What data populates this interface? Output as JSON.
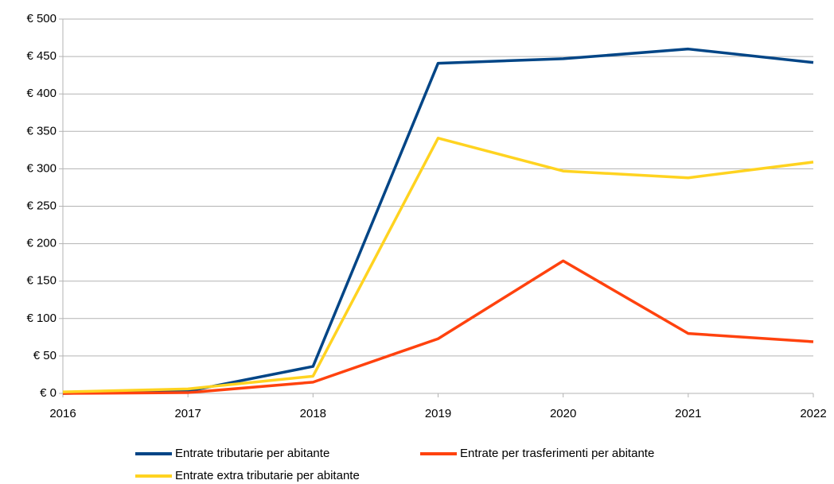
{
  "chart_data": {
    "type": "line",
    "x": [
      2016,
      2017,
      2018,
      2019,
      2020,
      2021,
      2022
    ],
    "series": [
      {
        "name": "Entrate tributarie per abitante",
        "color": "#004586",
        "values": [
          0,
          3,
          36,
          441,
          447,
          460,
          442
        ]
      },
      {
        "name": "Entrate per trasferimenti per abitante",
        "color": "#ff420e",
        "values": [
          0,
          1,
          15,
          73,
          177,
          80,
          69
        ]
      },
      {
        "name": "Entrate extra tributarie per abitante",
        "color": "#ffd320",
        "values": [
          2,
          6,
          23,
          341,
          297,
          288,
          309
        ]
      }
    ],
    "xlim": [
      2016,
      2022
    ],
    "xticks": [
      2016,
      2017,
      2018,
      2019,
      2020,
      2021,
      2022
    ],
    "ylim": [
      0,
      500
    ],
    "yticks": [
      {
        "value": 0,
        "label": "€ 0"
      },
      {
        "value": 50,
        "label": "€ 50"
      },
      {
        "value": 100,
        "label": "€ 100"
      },
      {
        "value": 150,
        "label": "€ 150"
      },
      {
        "value": 200,
        "label": "€ 200"
      },
      {
        "value": 250,
        "label": "€ 250"
      },
      {
        "value": 300,
        "label": "€ 300"
      },
      {
        "value": 350,
        "label": "€ 350"
      },
      {
        "value": 400,
        "label": "€ 400"
      },
      {
        "value": 450,
        "label": "€ 450"
      },
      {
        "value": 500,
        "label": "€ 500"
      }
    ],
    "grid": true,
    "legend": "bottom"
  }
}
